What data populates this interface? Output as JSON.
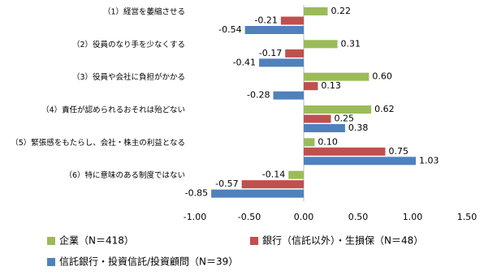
{
  "chart_data": {
    "type": "hbar",
    "categories": [
      "（1）経営を萎縮させる",
      "（2）役員のなり手を少なくする",
      "（3）役員や会社に負担がかかる",
      "（4）責任が認められるおそれは殆どない",
      "（5）緊張感をもたらし、会社・株主の利益となる",
      "（6）特に意味のある制度ではない"
    ],
    "series": [
      {
        "name": "企業（N＝418）",
        "color": "#9bbb59",
        "values": [
          0.22,
          0.31,
          0.6,
          0.62,
          0.1,
          -0.14
        ],
        "value_labels": [
          "0.22",
          "0.31",
          "0.60",
          "0.62",
          "0.10",
          "-0.14"
        ]
      },
      {
        "name": "銀行（信託以外）・生損保（N＝48）",
        "color": "#c0504d",
        "values": [
          -0.21,
          -0.17,
          0.13,
          0.25,
          0.75,
          -0.57
        ],
        "value_labels": [
          "-0.21",
          "-0.17",
          "0.13",
          "0.25",
          "0.75",
          "-0.57"
        ]
      },
      {
        "name": "信託銀行・投資信託/投資顧問（N＝39）",
        "color": "#4f81bd",
        "values": [
          -0.54,
          -0.41,
          -0.28,
          0.38,
          1.03,
          -0.85
        ],
        "value_labels": [
          "-0.54",
          "-0.41",
          "-0.28",
          "0.38",
          "1.03",
          "-0.85"
        ]
      }
    ],
    "xlim": [
      -1.0,
      1.5
    ],
    "xticks": [
      {
        "value": -1.0,
        "label": "-1.00"
      },
      {
        "value": -0.5,
        "label": "-0.50"
      },
      {
        "value": 0,
        "label": "0.00"
      },
      {
        "value": 0.5,
        "label": "0.50"
      },
      {
        "value": 1.0,
        "label": "1.00"
      },
      {
        "value": 1.5,
        "label": "1.50"
      }
    ]
  }
}
